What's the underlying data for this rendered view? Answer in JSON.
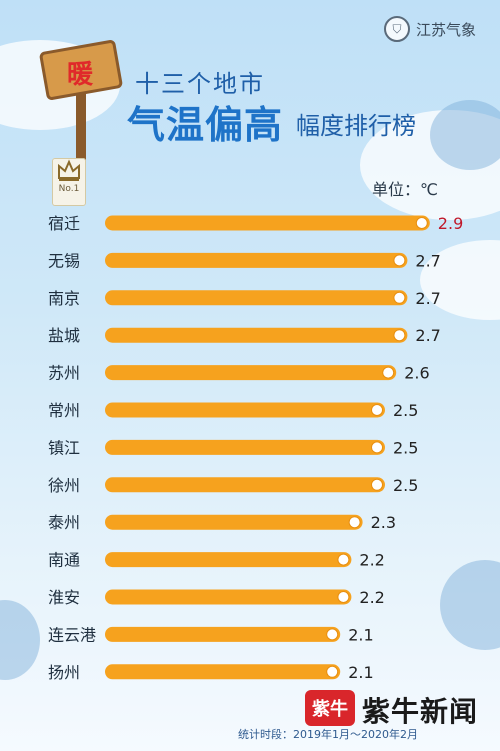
{
  "logo": {
    "text": "江苏气象",
    "icon": "meteorology-emblem-icon"
  },
  "sign": {
    "text": "暖"
  },
  "title": {
    "line1": "十三个地市",
    "line2_emph": "气温偏高",
    "line2_rest": "幅度排行榜"
  },
  "rank_badge": {
    "label": "No.1",
    "icon": "crown-icon"
  },
  "unit_label": "单位：℃",
  "colors": {
    "bar": "#f6a21e",
    "highlight_value": "#c0182a",
    "value": "#222222",
    "label": "#1f2f3f"
  },
  "chart_data": {
    "type": "bar",
    "orientation": "horizontal",
    "categories": [
      "宿迁",
      "无锡",
      "南京",
      "盐城",
      "苏州",
      "常州",
      "镇江",
      "徐州",
      "泰州",
      "南通",
      "淮安",
      "连云港",
      "扬州"
    ],
    "values": [
      2.9,
      2.7,
      2.7,
      2.7,
      2.6,
      2.5,
      2.5,
      2.5,
      2.3,
      2.2,
      2.2,
      2.1,
      2.1
    ],
    "value_labels": [
      "2.9",
      "2.7",
      "2.7",
      "2.7",
      "2.6",
      "2.5",
      "2.5",
      "2.5",
      "2.3",
      "2.2",
      "2.2",
      "2.1",
      "2.1"
    ],
    "unit": "℃",
    "highlight_first": true
  },
  "footer": {
    "badge": "紫牛",
    "brand": "紫牛新闻",
    "stat": "统计时段：2019年1月～2020年2月"
  }
}
